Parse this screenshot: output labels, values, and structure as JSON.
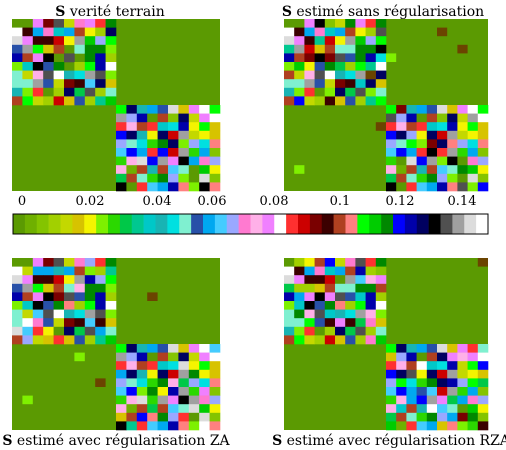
{
  "figure": {
    "panels": [
      {
        "title_bold": "S",
        "title_rest": " verité terrain"
      },
      {
        "title_bold": "S",
        "title_rest": " estimé sans régularisation"
      },
      {
        "title_bold": "S",
        "title_rest": " estimé avec régularisation ZA"
      },
      {
        "title_bold": "S",
        "title_rest": " estimé avec régularisation RZA"
      }
    ],
    "colorbar_ticks": [
      "0",
      "0.02",
      "0.04",
      "0.06",
      "0.08",
      "0.1",
      "0.12",
      "0.14"
    ]
  },
  "colors": {
    "background_green": "#5b9a02",
    "colormap": [
      "#5b9a02",
      "#6fb000",
      "#84c400",
      "#a2d000",
      "#c3d800",
      "#d7c300",
      "#f4f400",
      "#7df000",
      "#2bd800",
      "#00c848",
      "#00c890",
      "#00c8c8",
      "#18b4b4",
      "#00e0e0",
      "#7ff0d0",
      "#2850a8",
      "#00a8f0",
      "#44ccff",
      "#9aa8ff",
      "#ff7ad0",
      "#ffb0e8",
      "#f080ff",
      "#ffffff",
      "#ff3030",
      "#cc0000",
      "#7a0000",
      "#3c0000",
      "#b04020",
      "#ff8080",
      "#00ff00",
      "#00cc00",
      "#008800",
      "#0000ff",
      "#0000aa",
      "#000060",
      "#000000",
      "#505050",
      "#a0a0a0",
      "#dcdcdc",
      "#ffffff"
    ]
  },
  "chart_data": [
    {
      "type": "heatmap",
      "title": "S verité terrain",
      "structure": "two dense diagonal blocks (top-left 10x10, bottom-right 10x10) on a zero background",
      "size": [
        20,
        20
      ]
    },
    {
      "type": "heatmap",
      "title": "S estimé sans régularisation",
      "structure": "two dense diagonal blocks plus scattered off-block nonzero entries",
      "size": [
        20,
        20
      ]
    },
    {
      "type": "heatmap",
      "title": "S estimé avec régularisation ZA",
      "structure": "two dense diagonal blocks plus a few off-block nonzero entries",
      "size": [
        20,
        20
      ]
    },
    {
      "type": "heatmap",
      "title": "S estimé avec régularisation RZA",
      "structure": "two dense diagonal blocks, almost no off-block entries",
      "size": [
        20,
        20
      ]
    },
    {
      "type": "colorbar",
      "range": [
        0,
        0.15
      ],
      "ticks": [
        0,
        0.02,
        0.04,
        0.06,
        0.08,
        0.1,
        0.12,
        0.14
      ]
    }
  ]
}
